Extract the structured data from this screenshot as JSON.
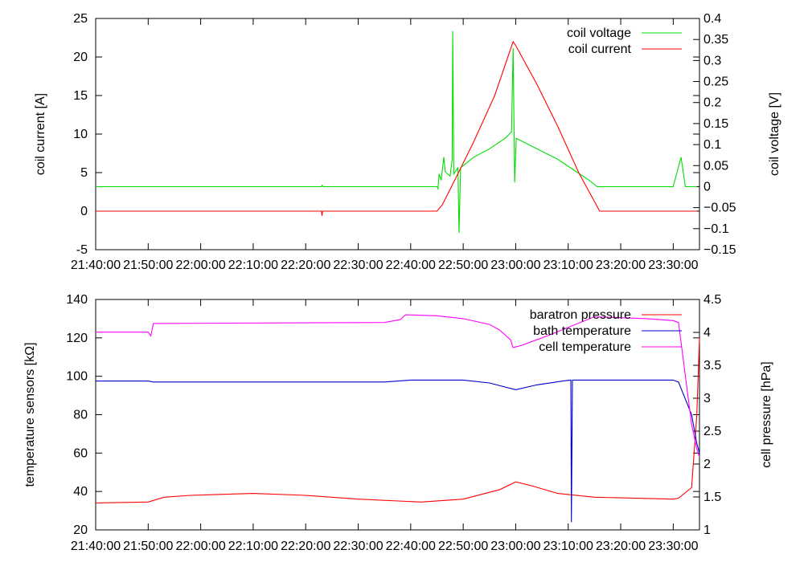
{
  "chart_data": [
    {
      "type": "line",
      "xlabel": "",
      "ylabel": "coil current [A]",
      "y2label": "coil voltage [V]",
      "xticks": [
        "21:40:00",
        "21:50:00",
        "22:00:00",
        "22:10:00",
        "22:20:00",
        "22:30:00",
        "22:40:00",
        "22:50:00",
        "23:00:00",
        "23:10:00",
        "23:20:00",
        "23:30:00"
      ],
      "xlim_minutes": [
        0,
        115
      ],
      "ylim": [
        -5,
        25
      ],
      "yticks": [
        -5,
        0,
        5,
        10,
        15,
        20,
        25
      ],
      "y2lim": [
        -0.15,
        0.4
      ],
      "y2ticks": [
        "-0.15",
        "-0.1",
        "-0.05",
        "0",
        "0.05",
        "0.1",
        "0.15",
        "0.2",
        "0.25",
        "0.3",
        "0.35",
        "0.4"
      ],
      "legend_position": "top-right",
      "series": [
        {
          "name": "coil voltage",
          "color": "#00dd00",
          "axis": "y2",
          "points": [
            [
              0,
              0
            ],
            [
              43,
              0
            ],
            [
              43.1,
              0.003
            ],
            [
              43.3,
              0
            ],
            [
              65,
              0
            ],
            [
              65.2,
              -0.005
            ],
            [
              65.4,
              0.03
            ],
            [
              65.8,
              0.015
            ],
            [
              66.3,
              0.07
            ],
            [
              66.6,
              0.035
            ],
            [
              67.5,
              0.025
            ],
            [
              67.9,
              0.065
            ],
            [
              68,
              0.37
            ],
            [
              68.2,
              0.03
            ],
            [
              69,
              0.045
            ],
            [
              69.2,
              -0.11
            ],
            [
              69.5,
              0.045
            ],
            [
              72,
              0.07
            ],
            [
              75,
              0.09
            ],
            [
              78,
              0.115
            ],
            [
              79.2,
              0.13
            ],
            [
              79.5,
              0.33
            ],
            [
              79.8,
              0.01
            ],
            [
              80.1,
              0.115
            ],
            [
              84,
              0.09
            ],
            [
              88,
              0.065
            ],
            [
              91,
              0.04
            ],
            [
              94,
              0.015
            ],
            [
              95.5,
              0
            ],
            [
              110,
              0
            ],
            [
              111.5,
              0.07
            ],
            [
              112.3,
              0
            ],
            [
              114.5,
              0
            ]
          ]
        },
        {
          "name": "coil current",
          "color": "#ff0000",
          "axis": "y",
          "points": [
            [
              0,
              0
            ],
            [
              43,
              0
            ],
            [
              43.1,
              -0.6
            ],
            [
              43.2,
              0
            ],
            [
              65,
              0
            ],
            [
              66,
              0.8
            ],
            [
              68,
              3.5
            ],
            [
              72,
              9
            ],
            [
              76,
              15
            ],
            [
              79.5,
              22
            ],
            [
              80,
              21.5
            ],
            [
              84,
              16.5
            ],
            [
              88,
              11
            ],
            [
              92,
              5
            ],
            [
              96,
              0
            ],
            [
              114.5,
              0
            ]
          ]
        }
      ]
    },
    {
      "type": "line",
      "xlabel": "",
      "ylabel": "temperature sensors [kΩ]",
      "y2label": "cell pressure [hPa]",
      "xticks": [
        "21:40:00",
        "21:50:00",
        "22:00:00",
        "22:10:00",
        "22:20:00",
        "22:30:00",
        "22:40:00",
        "22:50:00",
        "23:00:00",
        "23:10:00",
        "23:20:00",
        "23:30:00"
      ],
      "xlim_minutes": [
        0,
        115
      ],
      "ylim": [
        20,
        140
      ],
      "yticks": [
        20,
        40,
        60,
        80,
        100,
        120,
        140
      ],
      "y2lim": [
        1,
        4.5
      ],
      "y2ticks": [
        "1",
        "1.5",
        "2",
        "2.5",
        "3",
        "3.5",
        "4",
        "4.5"
      ],
      "legend_position": "top-right",
      "series": [
        {
          "name": "baratron pressure",
          "color": "#ff0000",
          "axis": "y",
          "points": [
            [
              0,
              34
            ],
            [
              10,
              34.5
            ],
            [
              13,
              37
            ],
            [
              18,
              38
            ],
            [
              30,
              39
            ],
            [
              40,
              38
            ],
            [
              50,
              36
            ],
            [
              62,
              34.5
            ],
            [
              70,
              36
            ],
            [
              77,
              41
            ],
            [
              80,
              45
            ],
            [
              83,
              43
            ],
            [
              88,
              39
            ],
            [
              95,
              37
            ],
            [
              110,
              36
            ],
            [
              111,
              36.5
            ],
            [
              113.5,
              42
            ],
            [
              114.5,
              80
            ],
            [
              115,
              120
            ]
          ]
        },
        {
          "name": "bath temperature",
          "color": "#0000cc",
          "axis": "y",
          "points": [
            [
              0,
              97.5
            ],
            [
              10,
              97.5
            ],
            [
              11,
              97
            ],
            [
              55,
              97
            ],
            [
              60,
              98
            ],
            [
              70,
              98
            ],
            [
              75,
              96.5
            ],
            [
              80,
              93
            ],
            [
              84,
              95.5
            ],
            [
              89,
              97.5
            ],
            [
              90.5,
              98
            ],
            [
              90.6,
              24
            ],
            [
              90.8,
              98
            ],
            [
              100,
              98
            ],
            [
              110,
              98
            ],
            [
              111,
              97
            ],
            [
              113.5,
              80
            ],
            [
              114.5,
              65
            ],
            [
              115,
              60
            ]
          ]
        },
        {
          "name": "cell temperature",
          "color": "#ff00ff",
          "axis": "y",
          "points": [
            [
              0,
              123
            ],
            [
              10,
              123
            ],
            [
              10.5,
              121
            ],
            [
              11,
              127.5
            ],
            [
              55,
              128
            ],
            [
              57,
              129
            ],
            [
              58,
              129.5
            ],
            [
              59,
              132
            ],
            [
              65,
              131.5
            ],
            [
              70,
              130
            ],
            [
              75,
              127
            ],
            [
              77,
              124
            ],
            [
              79,
              119
            ],
            [
              79.5,
              115
            ],
            [
              81,
              116
            ],
            [
              84,
              119
            ],
            [
              86,
              121
            ],
            [
              95,
              131
            ],
            [
              105,
              130
            ],
            [
              110,
              129
            ],
            [
              111,
              128
            ],
            [
              113.5,
              75
            ],
            [
              114.5,
              62
            ],
            [
              115,
              58
            ]
          ]
        }
      ]
    }
  ]
}
